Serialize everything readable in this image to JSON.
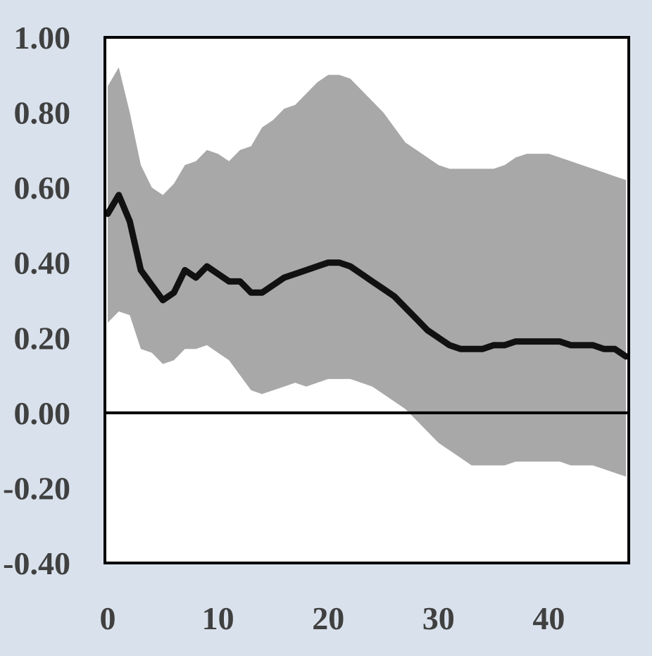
{
  "chart_data": {
    "type": "line",
    "title": "",
    "xlabel": "",
    "ylabel": "",
    "xlim": [
      0,
      47
    ],
    "ylim": [
      -0.4,
      1.0
    ],
    "xticks": [
      0,
      10,
      20,
      30,
      40
    ],
    "xtick_labels": [
      "0",
      "10",
      "20",
      "30",
      "40"
    ],
    "yticks": [
      1.0,
      0.8,
      0.6,
      0.4,
      0.2,
      0.0,
      -0.2,
      -0.4
    ],
    "ytick_labels": [
      "1.00",
      "0.80",
      "0.60",
      "0.40",
      "0.20",
      "0.00",
      "-0.20",
      "-0.40"
    ],
    "grid": false,
    "zero_line": true,
    "colors": {
      "background": "#d9e1ec",
      "plot_area": "#ffffff",
      "band": "#a8a8a8",
      "line": "#111111",
      "axis_text": "#404040"
    },
    "x": [
      0,
      1,
      2,
      3,
      4,
      5,
      6,
      7,
      8,
      9,
      10,
      11,
      12,
      13,
      14,
      15,
      16,
      17,
      18,
      19,
      20,
      21,
      22,
      23,
      24,
      25,
      26,
      27,
      28,
      29,
      30,
      31,
      32,
      33,
      34,
      35,
      36,
      37,
      38,
      39,
      40,
      41,
      42,
      43,
      44,
      45,
      46,
      47
    ],
    "series": [
      {
        "role": "estimate",
        "values": [
          0.53,
          0.58,
          0.51,
          0.38,
          0.34,
          0.3,
          0.32,
          0.38,
          0.36,
          0.39,
          0.37,
          0.35,
          0.35,
          0.32,
          0.32,
          0.34,
          0.36,
          0.37,
          0.38,
          0.39,
          0.4,
          0.4,
          0.39,
          0.37,
          0.35,
          0.33,
          0.31,
          0.28,
          0.25,
          0.22,
          0.2,
          0.18,
          0.17,
          0.17,
          0.17,
          0.18,
          0.18,
          0.19,
          0.19,
          0.19,
          0.19,
          0.19,
          0.18,
          0.18,
          0.18,
          0.17,
          0.17,
          0.15
        ]
      },
      {
        "role": "upper_band",
        "values": [
          0.87,
          0.92,
          0.8,
          0.66,
          0.6,
          0.58,
          0.61,
          0.66,
          0.67,
          0.7,
          0.69,
          0.67,
          0.7,
          0.71,
          0.76,
          0.78,
          0.81,
          0.82,
          0.85,
          0.88,
          0.9,
          0.9,
          0.89,
          0.86,
          0.83,
          0.8,
          0.76,
          0.72,
          0.7,
          0.68,
          0.66,
          0.65,
          0.65,
          0.65,
          0.65,
          0.65,
          0.66,
          0.68,
          0.69,
          0.69,
          0.69,
          0.68,
          0.67,
          0.66,
          0.65,
          0.64,
          0.63,
          0.62
        ]
      },
      {
        "role": "lower_band",
        "values": [
          0.24,
          0.27,
          0.26,
          0.17,
          0.16,
          0.13,
          0.14,
          0.17,
          0.17,
          0.18,
          0.16,
          0.14,
          0.1,
          0.06,
          0.05,
          0.06,
          0.07,
          0.08,
          0.07,
          0.08,
          0.09,
          0.09,
          0.09,
          0.08,
          0.07,
          0.05,
          0.03,
          0.01,
          -0.02,
          -0.05,
          -0.08,
          -0.1,
          -0.12,
          -0.14,
          -0.14,
          -0.14,
          -0.14,
          -0.13,
          -0.13,
          -0.13,
          -0.13,
          -0.13,
          -0.14,
          -0.14,
          -0.14,
          -0.15,
          -0.16,
          -0.17
        ]
      }
    ]
  }
}
